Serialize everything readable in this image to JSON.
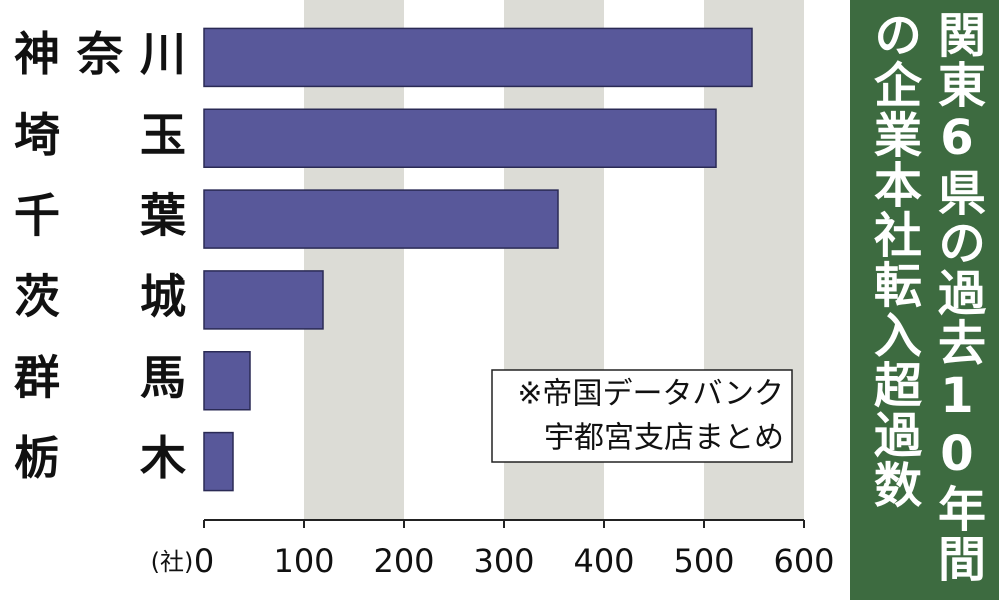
{
  "chart_data": {
    "type": "bar",
    "orientation": "horizontal",
    "title": "関東6県の過去10年間の企業本社転入超過数",
    "categories": [
      "神奈川",
      "埼　玉",
      "千　葉",
      "茨　城",
      "群　馬",
      "栃　木"
    ],
    "values": [
      548,
      512,
      354,
      119,
      46,
      29
    ],
    "color": "#58589a",
    "xlim": [
      0,
      600
    ],
    "xticks": [
      0,
      100,
      200,
      300,
      400,
      500,
      600
    ],
    "x_unit": "(社)",
    "source": [
      "※帝国データバンク",
      "宇都宮支店まとめ"
    ],
    "grid": true
  }
}
